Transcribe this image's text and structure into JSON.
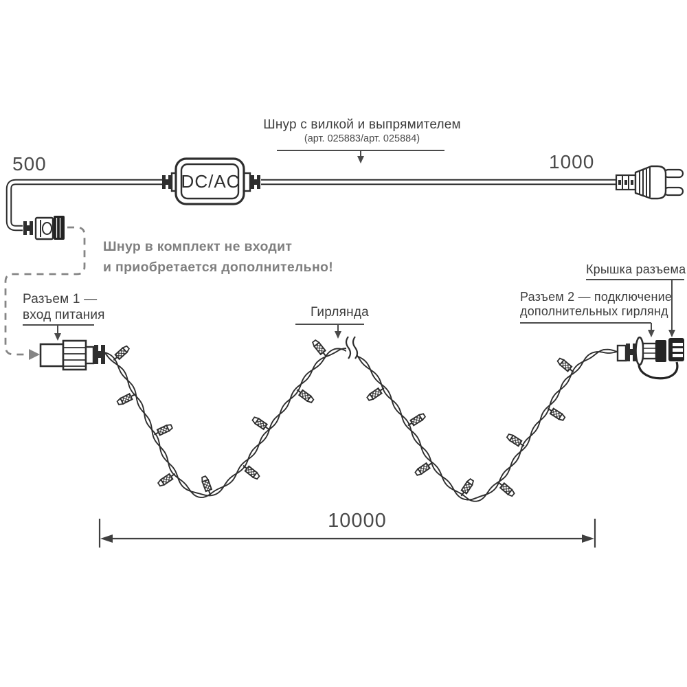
{
  "labels": {
    "cord": {
      "line1": "Шнур с вилкой и выпрямителем",
      "line2": "(арт. 025883/арт. 025884)"
    },
    "adapter": "DC/AC",
    "note": {
      "line1": "Шнур в комплект не входит",
      "line2": "и приобретается дополнительно!"
    },
    "connector1": {
      "line1": "Разъем 1 —",
      "line2": "вход питания"
    },
    "garland": "Гирлянда",
    "cap": "Крышка разъема",
    "connector2": {
      "line1": "Разъем 2 — подключение",
      "line2": "дополнительных гирлянд"
    }
  },
  "dimensions": {
    "cord_left": "500",
    "cord_right": "1000",
    "garland": "10000"
  },
  "colors": {
    "ink": "#2e2e2e",
    "muted_gray": "#7f7f7f",
    "leader": "#4a4a4a",
    "background": "#ffffff"
  }
}
